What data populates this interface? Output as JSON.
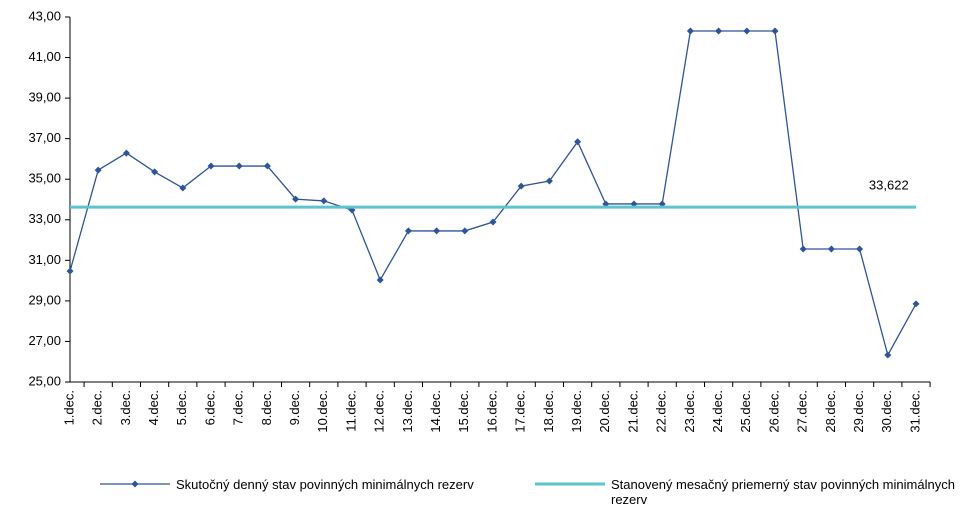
{
  "chart_data": {
    "type": "line",
    "categories": [
      "1.dec.",
      "2.dec.",
      "3.dec.",
      "4.dec.",
      "5.dec.",
      "6.dec.",
      "7.dec.",
      "8.dec.",
      "9.dec.",
      "10.dec.",
      "11.dec.",
      "12.dec.",
      "13.dec.",
      "14.dec.",
      "15.dec.",
      "16.dec.",
      "17.dec.",
      "18.dec.",
      "19.dec.",
      "20.dec.",
      "21.dec.",
      "22.dec.",
      "23.dec.",
      "24.dec.",
      "25.dec.",
      "26.dec.",
      "27.dec.",
      "28.dec.",
      "29.dec.",
      "30.dec.",
      "31.dec."
    ],
    "series": [
      {
        "name": "Skutočný denný stav povinných minimálnych rezerv",
        "color": "#2e5597",
        "values": [
          30.47,
          35.45,
          36.29,
          35.36,
          34.57,
          35.65,
          35.65,
          35.65,
          34.02,
          33.93,
          33.48,
          30.03,
          32.45,
          32.45,
          32.45,
          32.89,
          34.66,
          34.91,
          36.85,
          33.78,
          33.78,
          33.78,
          42.31,
          42.31,
          42.31,
          42.31,
          31.56,
          31.56,
          31.56,
          26.33,
          28.85
        ]
      },
      {
        "name": "Stanovený mesačný priemerný stav povinných minimálnych rezerv",
        "color": "#5bc4cf",
        "values": [
          33.622,
          33.622,
          33.622,
          33.622,
          33.622,
          33.622,
          33.622,
          33.622,
          33.622,
          33.622,
          33.622,
          33.622,
          33.622,
          33.622,
          33.622,
          33.622,
          33.622,
          33.622,
          33.622,
          33.622,
          33.622,
          33.622,
          33.622,
          33.622,
          33.622,
          33.622,
          33.622,
          33.622,
          33.622,
          33.622,
          33.622
        ],
        "value_label": "33,622"
      }
    ],
    "ylim": [
      25,
      43
    ],
    "yticks": [
      {
        "value": 25,
        "label": "25,00"
      },
      {
        "value": 27,
        "label": "27,00"
      },
      {
        "value": 29,
        "label": "29,00"
      },
      {
        "value": 31,
        "label": "31,00"
      },
      {
        "value": 33,
        "label": "33,00"
      },
      {
        "value": 35,
        "label": "35,00"
      },
      {
        "value": 37,
        "label": "37,00"
      },
      {
        "value": 39,
        "label": "39,00"
      },
      {
        "value": 41,
        "label": "41,00"
      },
      {
        "value": 43,
        "label": "43,00"
      }
    ],
    "grid": false,
    "legend": "bottom"
  }
}
